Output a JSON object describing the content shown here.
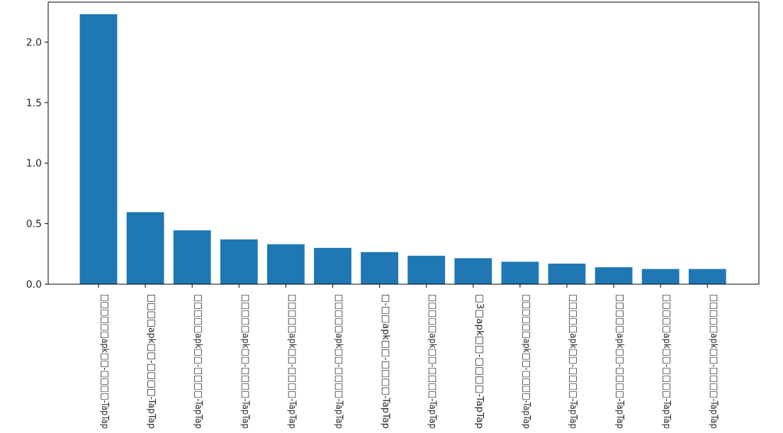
{
  "chart_data": {
    "type": "bar",
    "title": "",
    "xlabel": "",
    "ylabel": "",
    "ylim": [
      0,
      2.33
    ],
    "yticks": [
      "0.0",
      "0.5",
      "1.0",
      "1.5",
      "2.0"
    ],
    "grid": false,
    "bar_color": "#1f77b4",
    "categories": [
      "□□□□□□apk□□-□□□□-TapTap",
      "□□□□apk□□-□□□□-TapTap",
      "□□□□□apk□□-□□□□-TapTap",
      "□□□□□apk□□-□□□□-TapTap",
      "□□□□□apk□□-□□□□-TapTap",
      "□□□□□apk□□-□□□□-TapTap",
      "□-□□apk□□-□□□□-TapTap",
      "□□□□□apk□□-□□□□-TapTap",
      "□3□apk□□-□□□□-TapTap",
      "□□□□□□apk□□-□□□□-TapTap",
      "□□□□□apk□□-□□□□-TapTap",
      "□□□□□apk□□-□□□□-TapTap",
      "□□□□□apk□□-□□□□-TapTap",
      "□□□□□apk□□-□□□□-TapTap"
    ],
    "values": [
      2.23,
      0.595,
      0.445,
      0.37,
      0.33,
      0.3,
      0.265,
      0.235,
      0.215,
      0.185,
      0.17,
      0.14,
      0.125,
      0.125
    ]
  }
}
